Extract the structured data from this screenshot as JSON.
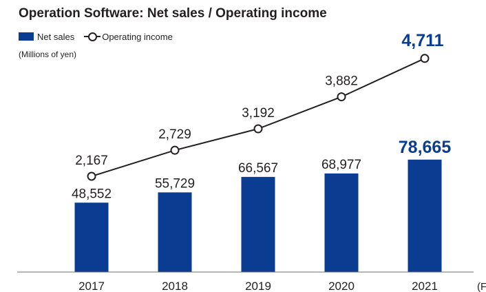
{
  "page": {
    "title": "Operation Software: Net sales / Operating income",
    "unit": "(Millions of yen)",
    "fy_label": "(F"
  },
  "colors": {
    "bar": "#0a3d91",
    "highlight_text": "#0a3d91",
    "line": "#231f20",
    "text": "#231f20"
  },
  "chart_data": {
    "type": "bar",
    "title": "Operation Software: Net sales / Operating income",
    "categories": [
      "2017",
      "2018",
      "2019",
      "2020",
      "2021"
    ],
    "series": [
      {
        "name": "Net sales",
        "type": "bar",
        "values": [
          48552,
          55729,
          66567,
          68977,
          78665
        ],
        "labels": [
          "48,552",
          "55,729",
          "66,567",
          "68,977",
          "78,665"
        ]
      },
      {
        "name": "Operating income",
        "type": "line",
        "marker": "open-circle",
        "values": [
          2167,
          2729,
          3192,
          3882,
          4711
        ],
        "labels": [
          "2,167",
          "2,729",
          "3,192",
          "3,882",
          "4,711"
        ]
      }
    ],
    "highlight_category": "2021",
    "legend_position": "top-left",
    "grid": false
  }
}
